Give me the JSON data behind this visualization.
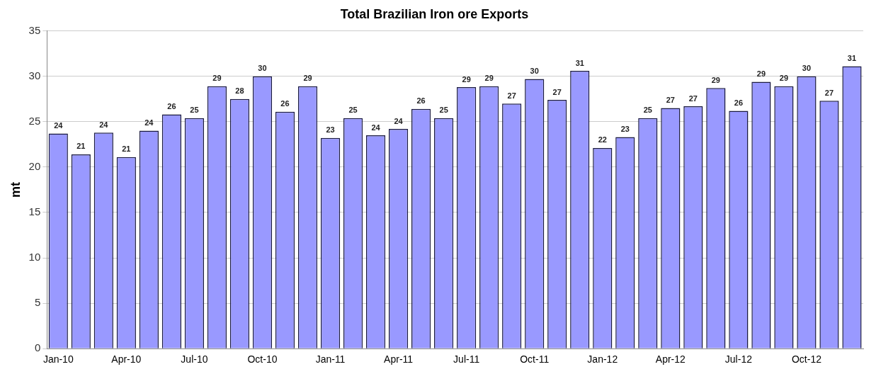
{
  "chart_data": {
    "type": "bar",
    "title": "Total Brazilian Iron ore Exports",
    "ylabel": "mt",
    "categories": [
      "Jan-10",
      null,
      null,
      "Apr-10",
      null,
      null,
      "Jul-10",
      null,
      null,
      "Oct-10",
      null,
      null,
      "Jan-11",
      null,
      null,
      "Apr-11",
      null,
      null,
      "Jul-11",
      null,
      null,
      "Oct-11",
      null,
      null,
      "Jan-12",
      null,
      null,
      "Apr-12",
      null,
      null,
      "Jul-12",
      null,
      null,
      "Oct-12",
      null,
      null
    ],
    "values": [
      23.7,
      21.4,
      23.8,
      21.1,
      24.0,
      25.8,
      25.4,
      28.9,
      27.5,
      30.0,
      26.1,
      28.9,
      23.2,
      25.4,
      23.5,
      24.2,
      26.4,
      25.4,
      28.8,
      28.9,
      27.0,
      29.7,
      27.4,
      30.6,
      22.1,
      23.3,
      25.4,
      26.5,
      26.7,
      28.7,
      26.2,
      29.4,
      28.9,
      30.0,
      27.3,
      31.1
    ],
    "value_labels": [
      "24",
      "21",
      "24",
      "21",
      "24",
      "26",
      "25",
      "29",
      "28",
      "30",
      "26",
      "29",
      "23",
      "25",
      "24",
      "24",
      "26",
      "25",
      "29",
      "29",
      "27",
      "30",
      "27",
      "31",
      "22",
      "23",
      "25",
      "27",
      "27",
      "29",
      "26",
      "29",
      "29",
      "30",
      "27",
      "31"
    ],
    "color": "#9999ff",
    "ylim": [
      0,
      35
    ],
    "yticks": [
      0,
      5,
      10,
      15,
      20,
      25,
      30,
      35
    ],
    "grid": "y",
    "legend": false
  }
}
